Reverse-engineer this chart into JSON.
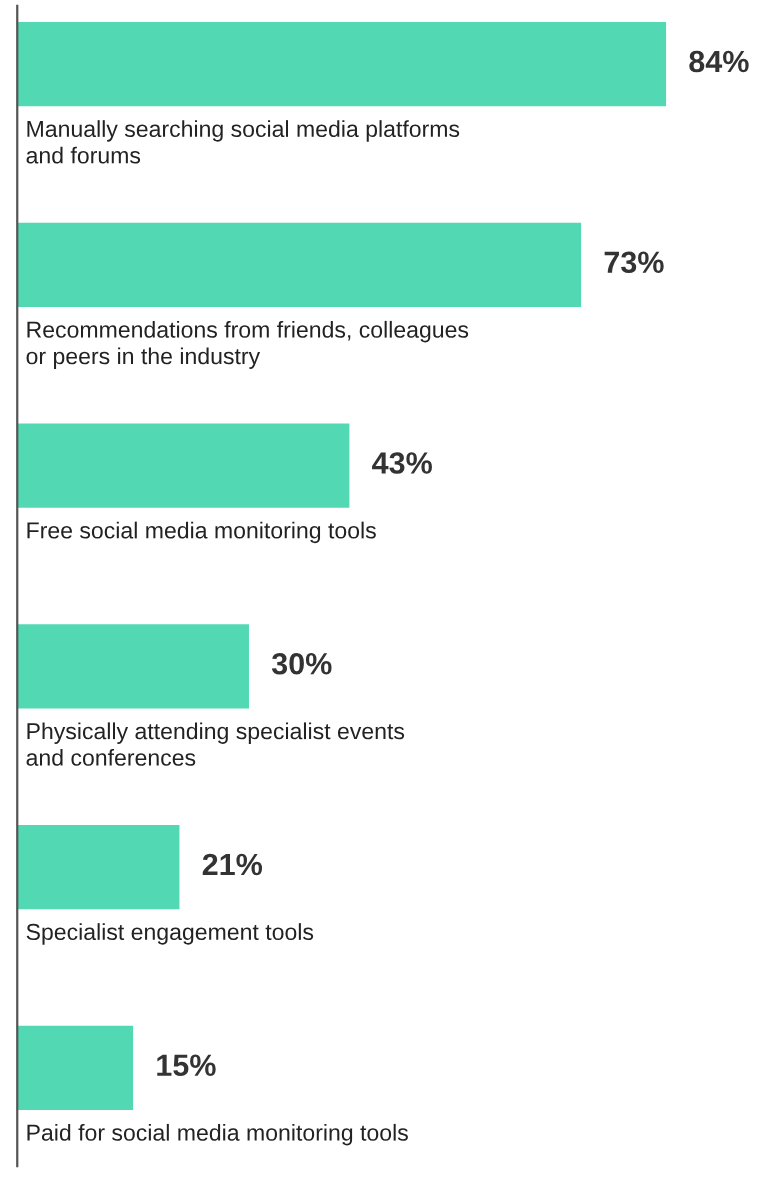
{
  "chart_data": {
    "type": "bar",
    "orientation": "horizontal",
    "categories": [
      "Manually searching social media platforms\nand forums",
      "Recommendations from friends, colleagues\nor peers in the industry",
      "Free social media monitoring tools",
      "Physically attending specialist events\nand conferences",
      "Specialist engagement tools",
      "Paid for social media monitoring tools"
    ],
    "values": [
      84,
      73,
      43,
      30,
      21,
      15
    ],
    "value_labels": [
      "84%",
      "73%",
      "43%",
      "30%",
      "21%",
      "15%"
    ],
    "color": "#52d8b3"
  }
}
